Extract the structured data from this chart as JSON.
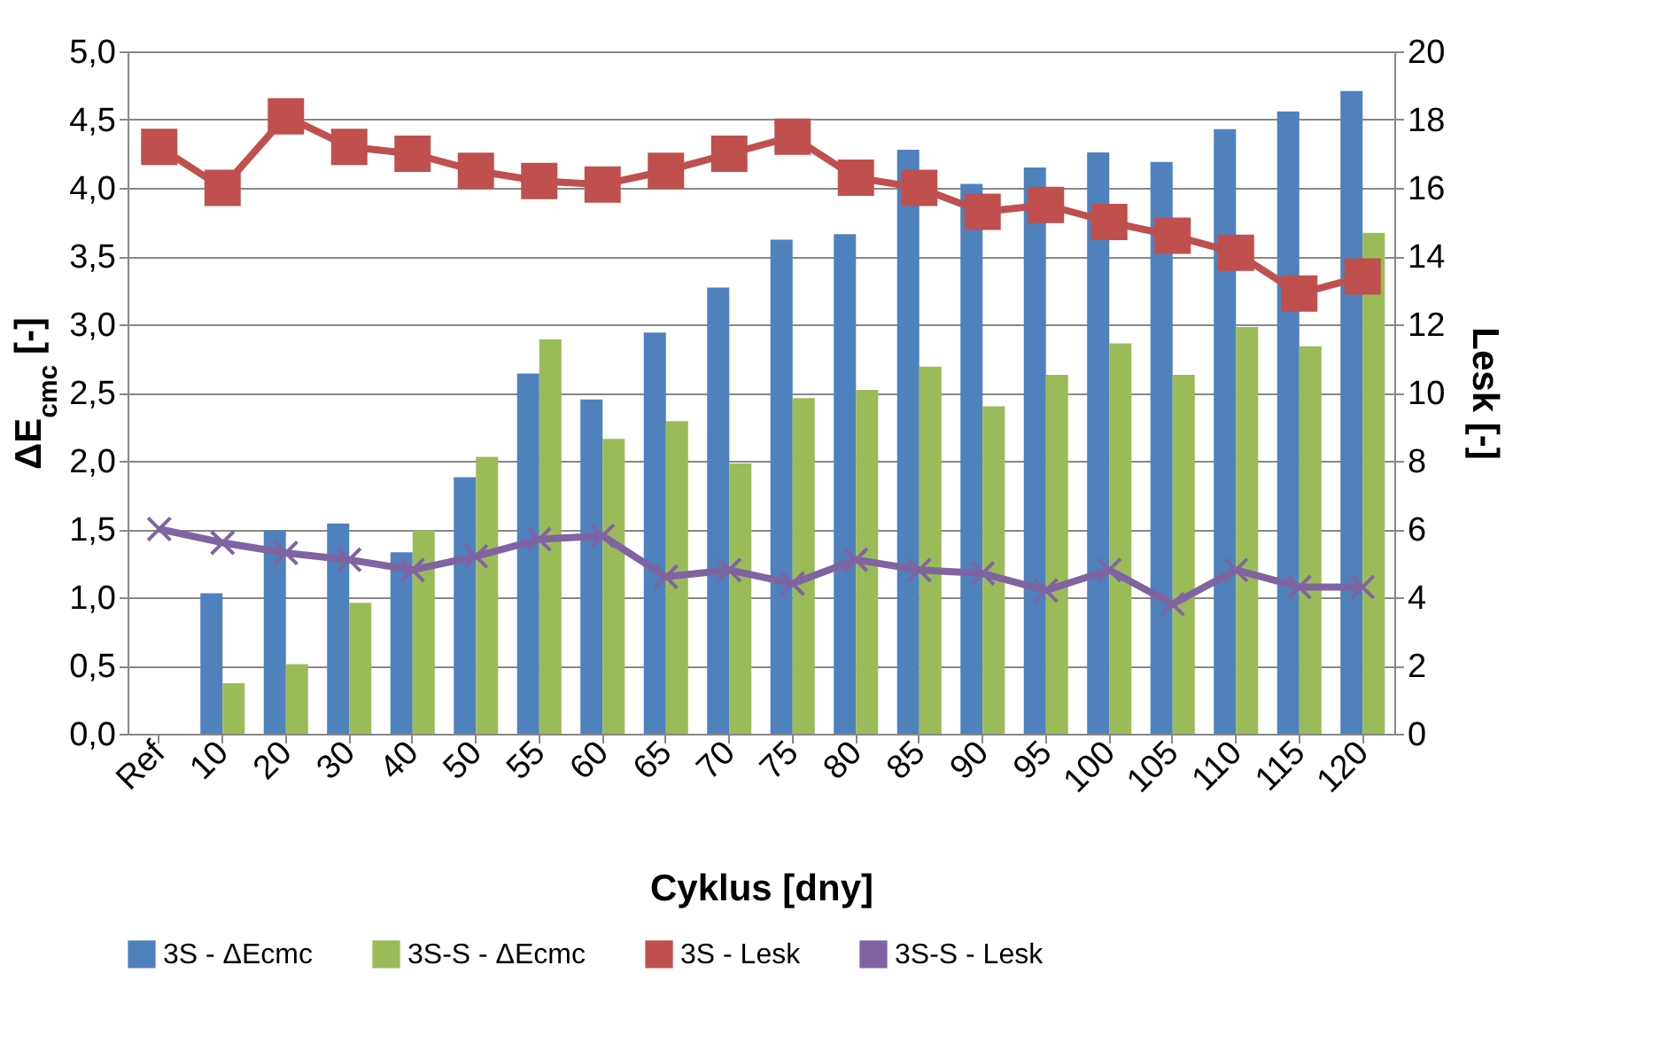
{
  "chart_data": {
    "type": "bar",
    "xlabel": "Cyklus [dny]",
    "ylabel": "ΔE$_{cmc}$ [-]",
    "y2label": "Lesk [-]",
    "categories": [
      "Ref",
      "10",
      "20",
      "30",
      "40",
      "50",
      "55",
      "60",
      "65",
      "70",
      "75",
      "80",
      "85",
      "90",
      "95",
      "100",
      "105",
      "110",
      "115",
      "120"
    ],
    "series": [
      {
        "name": "3S - ΔEcmc",
        "color": "#4f81bd",
        "values": [
          null,
          1.03,
          1.49,
          1.54,
          1.33,
          1.88,
          2.64,
          2.45,
          2.94,
          3.27,
          3.62,
          3.66,
          4.28,
          4.03,
          4.15,
          4.26,
          4.19,
          4.43,
          4.56,
          4.71
        ]
      },
      {
        "name": "3S-S - ΔEcmc",
        "color": "#9bbb59",
        "values": [
          null,
          0.37,
          0.51,
          0.96,
          1.49,
          2.03,
          2.89,
          2.16,
          2.29,
          1.98,
          2.46,
          2.52,
          2.69,
          2.4,
          2.63,
          2.86,
          2.63,
          2.98,
          2.84,
          3.67
        ]
      },
      {
        "name": "3S - Lesk",
        "type": "line",
        "axis": "y2",
        "marker": "square",
        "color": "#c0504d",
        "values": [
          17.2,
          16.0,
          18.1,
          17.2,
          17.0,
          16.5,
          16.2,
          16.1,
          16.5,
          17.0,
          17.5,
          16.3,
          16.0,
          15.3,
          15.5,
          15.0,
          14.6,
          14.1,
          12.9,
          13.4
        ]
      },
      {
        "name": "3S-S - Lesk",
        "type": "line",
        "axis": "y2",
        "marker": "cross",
        "color": "#8064a2",
        "values": [
          6.0,
          5.6,
          5.3,
          5.1,
          4.8,
          5.2,
          5.7,
          5.8,
          4.6,
          4.8,
          4.4,
          5.1,
          4.8,
          4.7,
          4.2,
          4.8,
          3.8,
          4.8,
          4.3,
          4.3
        ]
      }
    ],
    "ylim": [
      0,
      5
    ],
    "yticks": [
      {
        "value": 0,
        "label": "0,0"
      },
      {
        "value": 0.5,
        "label": "0,5"
      },
      {
        "value": 1,
        "label": "1,0"
      },
      {
        "value": 1.5,
        "label": "1,5"
      },
      {
        "value": 2,
        "label": "2,0"
      },
      {
        "value": 2.5,
        "label": "2,5"
      },
      {
        "value": 3,
        "label": "3,0"
      },
      {
        "value": 3.5,
        "label": "3,5"
      },
      {
        "value": 4,
        "label": "4,0"
      },
      {
        "value": 4.5,
        "label": "4,5"
      },
      {
        "value": 5,
        "label": "5,0"
      }
    ],
    "y2lim": [
      0,
      20
    ],
    "y2ticks": [
      0,
      2,
      4,
      6,
      8,
      10,
      12,
      14,
      16,
      18,
      20
    ],
    "grid": "y",
    "legend": "bottom"
  }
}
